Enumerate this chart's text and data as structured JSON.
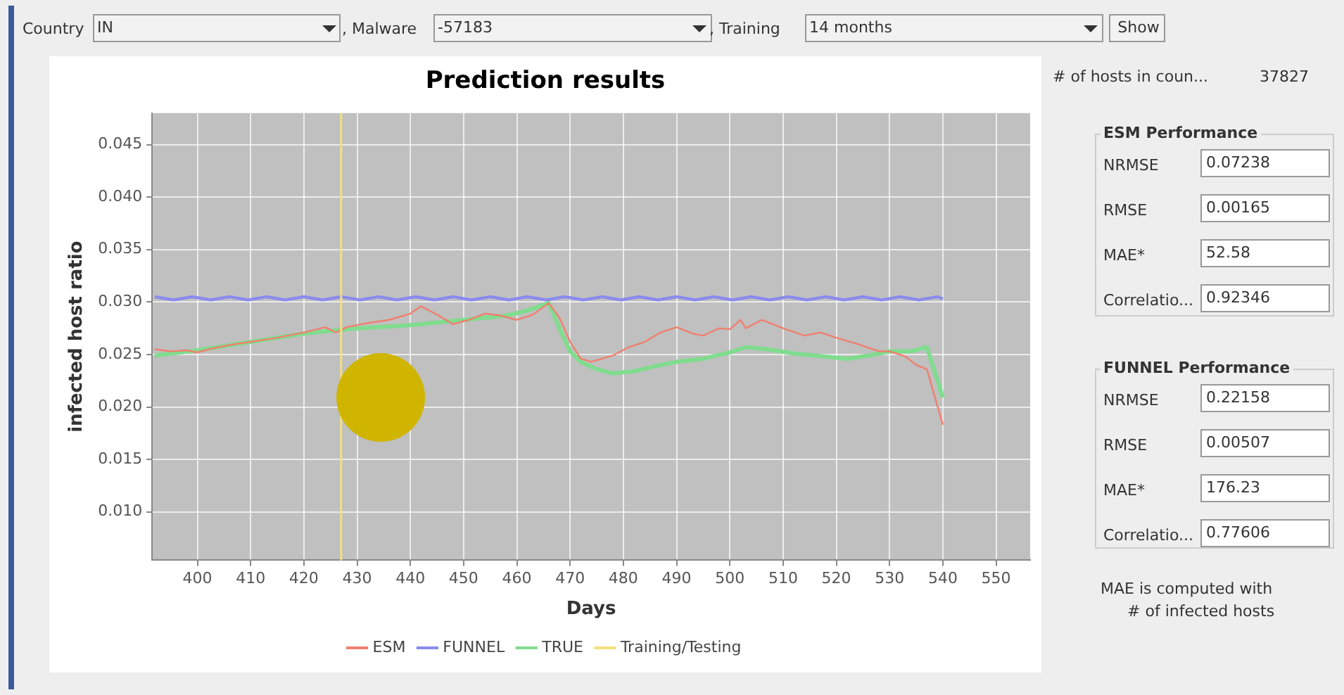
{
  "chart_data": [
    {
      "type": "line",
      "title": "Prediction results",
      "xlabel": "Days",
      "ylabel": "infected host ratio",
      "xlim": [
        391.5,
        556.4
      ],
      "xticks": [
        400,
        410,
        420,
        430,
        440,
        450,
        460,
        470,
        480,
        490,
        500,
        510,
        520,
        530,
        540,
        550
      ],
      "ylim": [
        0.0054,
        0.048
      ],
      "yticks": [
        {
          "value": 0.01,
          "label": "0.010"
        },
        0.015,
        {
          "value": 0.02,
          "label": "0.020"
        },
        0.025,
        {
          "value": 0.03,
          "label": "0.030"
        },
        0.035,
        {
          "value": 0.04,
          "label": "0.040"
        },
        0.045
      ],
      "grid": true,
      "legend": "bottom",
      "marker": "none",
      "line_style": "solid",
      "series": [
        {
          "name": "ESM",
          "color": "#f07f6f",
          "x": [
            392,
            395,
            398,
            400,
            403,
            406,
            410,
            415,
            420,
            424,
            426,
            428,
            432,
            436,
            440,
            442,
            445,
            448,
            451,
            454,
            457,
            460,
            463,
            466,
            468,
            470,
            472,
            474,
            476,
            478,
            481,
            484,
            487,
            490,
            493,
            495,
            498,
            500,
            502,
            503,
            506,
            510,
            514,
            517,
            520,
            524,
            528,
            530,
            533,
            535,
            537,
            540
          ],
          "values": [
            0.0255,
            0.0253,
            0.0254,
            0.0252,
            0.0256,
            0.0259,
            0.0262,
            0.0266,
            0.0271,
            0.0276,
            0.0271,
            0.0276,
            0.028,
            0.0283,
            0.0289,
            0.0296,
            0.0288,
            0.0279,
            0.0283,
            0.0289,
            0.0287,
            0.0283,
            0.0288,
            0.0299,
            0.0285,
            0.0262,
            0.0246,
            0.0243,
            0.0246,
            0.0249,
            0.0257,
            0.0262,
            0.0271,
            0.0276,
            0.027,
            0.0268,
            0.0275,
            0.0274,
            0.0283,
            0.0275,
            0.0283,
            0.0275,
            0.0268,
            0.0271,
            0.0266,
            0.026,
            0.0253,
            0.0253,
            0.0248,
            0.024,
            0.0236,
            0.0183
          ]
        },
        {
          "name": "FUNNEL",
          "color": "#8a8aee",
          "x": [
            392,
            395.5,
            399,
            402.5,
            406,
            409.5,
            413,
            416.5,
            420,
            423.5,
            427,
            430.5,
            434,
            437.5,
            441,
            444.5,
            448,
            451.5,
            455,
            458.5,
            462,
            465.5,
            469,
            472.5,
            476,
            479.5,
            483,
            486.5,
            490,
            493.5,
            497,
            500.5,
            504,
            507.5,
            511,
            514.5,
            518,
            521.5,
            525,
            528.5,
            532,
            535.5,
            539,
            540
          ],
          "values": [
            0.0305,
            0.0302,
            0.0305,
            0.0302,
            0.0305,
            0.0302,
            0.0305,
            0.0302,
            0.0305,
            0.0302,
            0.0305,
            0.0302,
            0.0305,
            0.0302,
            0.0305,
            0.0302,
            0.0305,
            0.0302,
            0.0305,
            0.0302,
            0.0305,
            0.0302,
            0.0305,
            0.0302,
            0.0305,
            0.0302,
            0.0305,
            0.0302,
            0.0305,
            0.0302,
            0.0305,
            0.0302,
            0.0305,
            0.0302,
            0.0305,
            0.0302,
            0.0305,
            0.0302,
            0.0305,
            0.0302,
            0.0305,
            0.0302,
            0.0305,
            0.0303
          ]
        },
        {
          "name": "TRUE",
          "color": "#80dc8e",
          "x": [
            392,
            400,
            410,
            420,
            430,
            440,
            450,
            458,
            462,
            466,
            468,
            470,
            472,
            475,
            478,
            482,
            486,
            490,
            495,
            500,
            503,
            507,
            512,
            518,
            522,
            526,
            530,
            534,
            537,
            540
          ],
          "values": [
            0.0249,
            0.0254,
            0.0262,
            0.027,
            0.0275,
            0.0278,
            0.0283,
            0.0287,
            0.0292,
            0.0299,
            0.0275,
            0.0253,
            0.0243,
            0.0236,
            0.0232,
            0.0234,
            0.0239,
            0.0243,
            0.0246,
            0.0252,
            0.0257,
            0.0255,
            0.0251,
            0.0248,
            0.0246,
            0.0249,
            0.0253,
            0.0253,
            0.0257,
            0.0209
          ]
        }
      ],
      "ref_lines": [
        {
          "axis": "x",
          "value": 427,
          "label": "Training/Testing",
          "color": "#f3e07c"
        }
      ]
    },
    {
      "type": "other",
      "annotations": [
        "Country",
        "IN",
        ", Malware",
        "-57183",
        ", Training",
        "14 months",
        "Show",
        "# of hosts in coun...",
        "37827",
        "ESM Performance",
        "NRMSE",
        "0.07238",
        "RMSE",
        "0.00165",
        "MAE*",
        "52.58",
        "Correlatio...",
        "0.92346",
        "FUNNEL Performance",
        "NRMSE",
        "0.22158",
        "RMSE",
        "0.00507",
        "MAE*",
        "176.23",
        "Correlatio...",
        "0.77606",
        "MAE is computed with",
        "# of infected hosts"
      ]
    }
  ]
}
